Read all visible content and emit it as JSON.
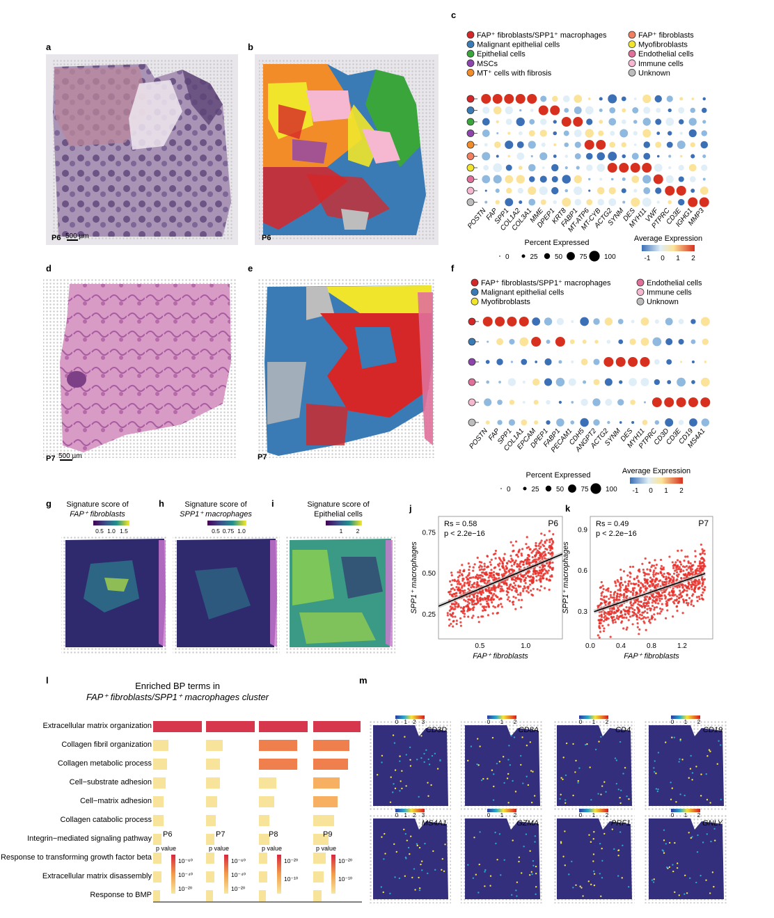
{
  "panel_letters": {
    "a": "a",
    "b": "b",
    "c": "c",
    "d": "d",
    "e": "e",
    "f": "f",
    "g": "g",
    "h": "h",
    "i": "i",
    "j": "j",
    "k": "k",
    "l": "l",
    "m": "m"
  },
  "panel_a": {
    "sample": "P6",
    "scalebar": "500 µm"
  },
  "panel_b": {
    "sample": "P6"
  },
  "panel_d": {
    "sample": "P7",
    "scalebar": "500 µm"
  },
  "panel_e": {
    "sample": "P7"
  },
  "legend_c": {
    "left": [
      {
        "label": "FAP⁺ fibroblasts/SPP1⁺ macrophages",
        "color": "#d62728"
      },
      {
        "label": "Malignant epithelial cells",
        "color": "#3b7bb5"
      },
      {
        "label": "Epithelial cells",
        "color": "#3aa53a"
      },
      {
        "label": "MSCs",
        "color": "#8e44ad"
      },
      {
        "label": "MT⁺ cells with fibrosis",
        "color": "#f28c28"
      }
    ],
    "right": [
      {
        "label": "FAP⁺ fibroblasts",
        "color": "#f08060"
      },
      {
        "label": "Myofibroblasts",
        "color": "#f1e52b"
      },
      {
        "label": "Endothelial cells",
        "color": "#e0709a"
      },
      {
        "label": "Immune cells",
        "color": "#f5b8d0"
      },
      {
        "label": "Unknown",
        "color": "#bdbdbd"
      }
    ]
  },
  "dotplot_c": {
    "genes": [
      "POSTN",
      "FAP",
      "SPP1",
      "COL1A2",
      "COL3A1",
      "MME",
      "DPEP1",
      "KRT8",
      "FABP1",
      "MT-ATP6",
      "MT-CYB",
      "ACTG2",
      "SYNM",
      "DES",
      "MYH11",
      "VWF",
      "PTPRC",
      "CD3E",
      "IGHG1",
      "MMP3"
    ],
    "row_colors": [
      "#d62728",
      "#3b7bb5",
      "#3aa53a",
      "#8e44ad",
      "#f28c28",
      "#f08060",
      "#f1e52b",
      "#e0709a",
      "#f5b8d0",
      "#bdbdbd"
    ],
    "size_title": "Percent Expressed",
    "size_ticks": [
      "0",
      "25",
      "50",
      "75",
      "100"
    ],
    "color_title": "Average Expression",
    "color_ticks": [
      "-1",
      "0",
      "1",
      "2"
    ]
  },
  "legend_f": {
    "left": [
      {
        "label": "FAP⁺ fibroblasts/SPP1⁺ macrophages",
        "color": "#d62728"
      },
      {
        "label": "Malignant epithelial cells",
        "color": "#3b7bb5"
      },
      {
        "label": "Myofibroblasts",
        "color": "#f1e52b"
      }
    ],
    "right": [
      {
        "label": "Endothelial cells",
        "color": "#e0709a"
      },
      {
        "label": "Immune cells",
        "color": "#f5b8d0"
      },
      {
        "label": "Unknown",
        "color": "#bdbdbd"
      }
    ]
  },
  "dotplot_f": {
    "genes": [
      "POSTN",
      "FAP",
      "SPP1",
      "COL1A1",
      "EPCAM",
      "DPEP1",
      "FABP1",
      "PECAM1",
      "CDH5",
      "ANGPT2",
      "ACTG2",
      "SYNM",
      "DES",
      "MYH11",
      "PTPRC",
      "CD3D",
      "CD3E",
      "CD19",
      "MS4A1"
    ],
    "row_colors": [
      "#d62728",
      "#3b7bb5",
      "#8e44ad",
      "#e0709a",
      "#f5b8d0",
      "#bdbdbd"
    ],
    "size_title": "Percent Expressed",
    "size_ticks": [
      "0",
      "25",
      "50",
      "75",
      "100"
    ],
    "color_title": "Average Expression",
    "color_ticks": [
      "-1",
      "0",
      "1",
      "2"
    ]
  },
  "panel_g": {
    "title1": "Signature score of",
    "title2": "FAP⁺ fibroblasts",
    "ticks": [
      "0.5",
      "1.0",
      "1.5"
    ]
  },
  "panel_h": {
    "title1": "Signature score of",
    "title2": "SPP1⁺ macrophages",
    "ticks": [
      "0.5",
      "0.75",
      "1.0"
    ]
  },
  "panel_i": {
    "title1": "Signature score of",
    "title2": "Epithelial cells",
    "ticks": [
      "1",
      "2"
    ]
  },
  "chart_data": [
    {
      "type": "scatter",
      "panel": "j",
      "sample": "P6",
      "annotation1": "Rs = 0.58",
      "annotation2": "p < 2.2e−16",
      "xlabel": "FAP⁺ fibroblasts",
      "ylabel": "SPP1⁺ macrophages",
      "x_ticks": [
        "0.5",
        "1.0"
      ],
      "y_ticks": [
        "0.25",
        "0.50",
        "0.75"
      ],
      "xlim": [
        0.05,
        1.4
      ],
      "ylim": [
        0.1,
        0.85
      ],
      "fit": {
        "x": [
          0.05,
          1.4
        ],
        "y": [
          0.3,
          0.62
        ]
      }
    },
    {
      "type": "scatter",
      "panel": "k",
      "sample": "P7",
      "annotation1": "Rs = 0.49",
      "annotation2": "p < 2.2e−16",
      "xlabel": "FAP⁺ fibroblasts",
      "ylabel": "SPP1⁺ macrophages",
      "x_ticks": [
        "0.0",
        "0.4",
        "0.8",
        "1.2"
      ],
      "y_ticks": [
        "0.3",
        "0.6",
        "0.9"
      ],
      "xlim": [
        0.0,
        1.6
      ],
      "ylim": [
        0.1,
        1.0
      ],
      "fit": {
        "x": [
          0.05,
          1.5
        ],
        "y": [
          0.3,
          0.58
        ]
      }
    },
    {
      "type": "bar",
      "panel": "l",
      "title1": "Enriched BP terms in",
      "title2": "FAP⁺ fibroblasts/SPP1⁺ macrophages cluster",
      "categories": [
        "Extracellular matrix organization",
        "Collagen fibril organization",
        "Collagen metabolic process",
        "Cell−substrate adhesion",
        "Cell−matrix adhesion",
        "Collagen catabolic process",
        "Integrin−mediated signaling pathway",
        "Response to transforming growth factor beta",
        "Extracellular matrix disassembly",
        "Response to BMP"
      ],
      "series": [
        {
          "name": "P6",
          "values": [
            70,
            22,
            20,
            18,
            15,
            15,
            12,
            12,
            12,
            10
          ],
          "legend_ticks": [
            "10⁻⁶⁰",
            "10⁻⁴⁰",
            "10⁻²⁰"
          ]
        },
        {
          "name": "P7",
          "values": [
            70,
            24,
            20,
            20,
            16,
            14,
            12,
            12,
            12,
            10
          ],
          "legend_ticks": [
            "10⁻⁶⁰",
            "10⁻⁴⁰",
            "10⁻²⁰"
          ]
        },
        {
          "name": "P8",
          "values": [
            70,
            55,
            55,
            25,
            22,
            15,
            15,
            12,
            12,
            10
          ],
          "legend_ticks": [
            "10⁻²⁰",
            "10⁻¹⁰"
          ]
        },
        {
          "name": "P9",
          "values": [
            68,
            52,
            50,
            38,
            35,
            30,
            22,
            18,
            15,
            12
          ],
          "legend_ticks": [
            "10⁻²⁰",
            "10⁻¹⁰"
          ]
        }
      ],
      "legend_title": "p value"
    }
  ],
  "panel_m": {
    "genes_row1": [
      "CD3D",
      "CD8A",
      "CD4",
      "CD19"
    ],
    "genes_row2": [
      "MS4A1",
      "GZMA",
      "PRF1",
      "GNLY"
    ],
    "ticks_row1": [
      [
        "0",
        "1",
        "2",
        "3"
      ],
      [
        "0",
        "1",
        "2"
      ],
      [
        "0",
        "1",
        "2"
      ],
      [
        "0",
        "1",
        "2"
      ]
    ],
    "ticks_row2": [
      [
        "0",
        "1",
        "2",
        "3"
      ],
      [
        "0",
        "1",
        "2"
      ],
      [
        "0",
        "1",
        "2"
      ],
      [
        "0",
        "1",
        "2"
      ]
    ]
  }
}
